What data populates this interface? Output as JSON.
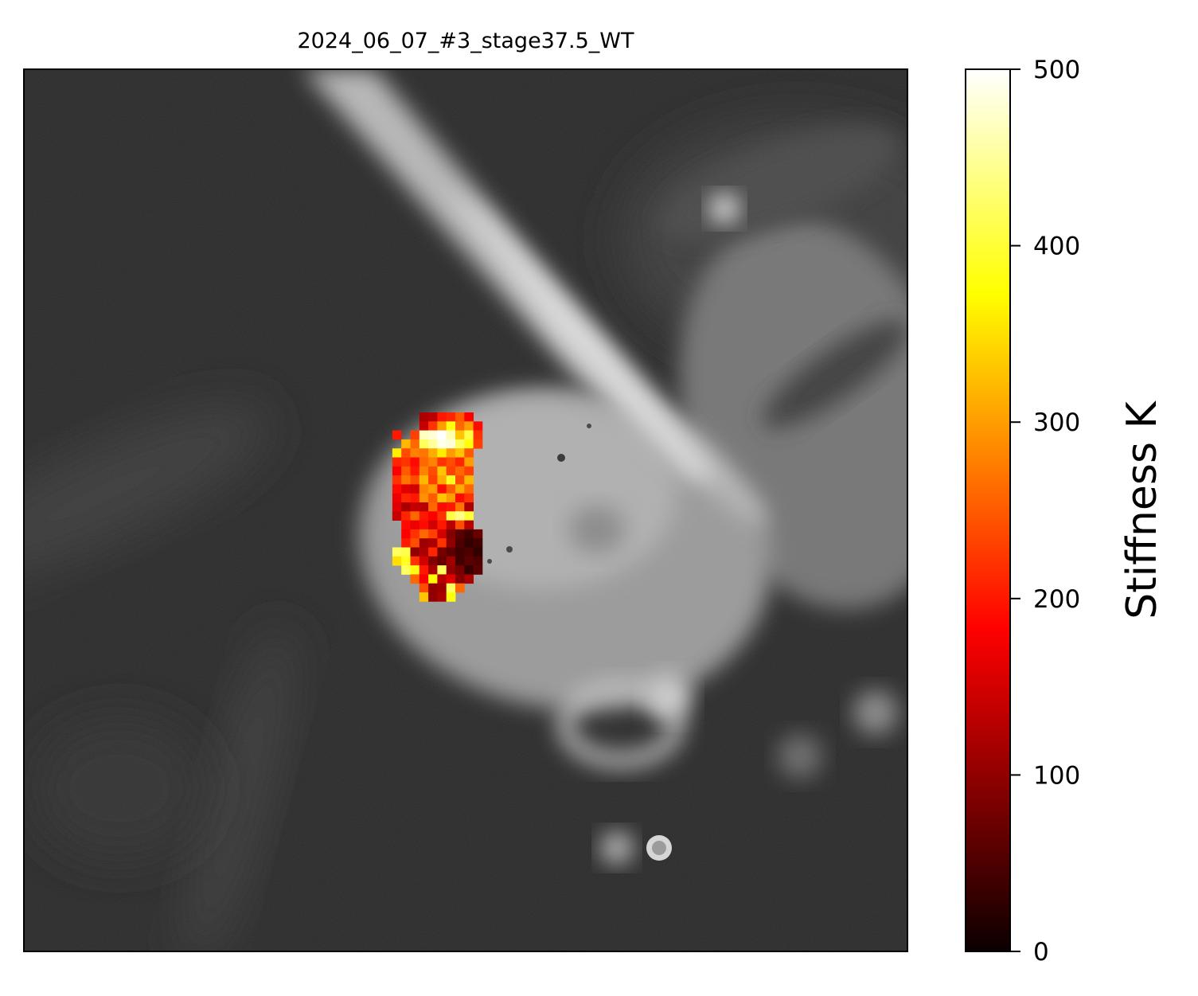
{
  "chart_data": {
    "type": "heatmap",
    "title": "2024_06_07_#3_stage37.5_WT",
    "colorbar": {
      "label": "Stiffness K",
      "colormap": "hot",
      "range": [
        0,
        500
      ],
      "ticks": [
        0,
        100,
        200,
        300,
        400,
        500
      ],
      "tick_labels": [
        "0",
        "100",
        "200",
        "300",
        "400",
        "500"
      ]
    },
    "background": "grayscale microscope image",
    "grid": false,
    "axes_ticks_visible": false,
    "stiffness_grid": [
      [
        null,
        null,
        null,
        null,
        null,
        null,
        120,
        130,
        200,
        210,
        250,
        180,
        null,
        null
      ],
      [
        null,
        null,
        null,
        null,
        null,
        null,
        140,
        220,
        300,
        380,
        260,
        300,
        190,
        null
      ],
      [
        null,
        null,
        null,
        200,
        null,
        230,
        470,
        480,
        500,
        460,
        330,
        410,
        220,
        null
      ],
      [
        null,
        null,
        null,
        null,
        320,
        260,
        420,
        450,
        490,
        480,
        420,
        380,
        230,
        null
      ],
      [
        null,
        null,
        null,
        360,
        240,
        280,
        270,
        310,
        360,
        300,
        330,
        250,
        null,
        null
      ],
      [
        null,
        null,
        null,
        210,
        220,
        190,
        260,
        280,
        220,
        240,
        210,
        300,
        null,
        null
      ],
      [
        null,
        null,
        null,
        180,
        250,
        200,
        280,
        240,
        330,
        230,
        260,
        230,
        null,
        null
      ],
      [
        null,
        null,
        null,
        220,
        270,
        240,
        320,
        230,
        310,
        390,
        240,
        320,
        null,
        null
      ],
      [
        null,
        null,
        null,
        190,
        160,
        150,
        280,
        300,
        190,
        250,
        310,
        260,
        null,
        null
      ],
      [
        null,
        null,
        null,
        170,
        210,
        200,
        290,
        250,
        330,
        300,
        190,
        220,
        null,
        null
      ],
      [
        null,
        null,
        null,
        160,
        120,
        140,
        130,
        260,
        190,
        200,
        270,
        120,
        null,
        null
      ],
      [
        null,
        null,
        null,
        140,
        210,
        260,
        200,
        180,
        220,
        410,
        440,
        400,
        null,
        null
      ],
      [
        null,
        null,
        null,
        null,
        190,
        170,
        190,
        150,
        200,
        130,
        240,
        130,
        null,
        null
      ],
      [
        null,
        null,
        null,
        null,
        180,
        220,
        260,
        230,
        150,
        90,
        60,
        40,
        70,
        null
      ],
      [
        null,
        null,
        null,
        null,
        200,
        240,
        110,
        120,
        220,
        100,
        50,
        30,
        40,
        null
      ],
      [
        null,
        null,
        null,
        420,
        410,
        100,
        120,
        210,
        80,
        60,
        40,
        50,
        30,
        null
      ],
      [
        null,
        null,
        null,
        350,
        390,
        220,
        150,
        90,
        70,
        110,
        40,
        60,
        50,
        null
      ],
      [
        null,
        null,
        null,
        null,
        420,
        380,
        200,
        120,
        420,
        100,
        80,
        30,
        60,
        null
      ],
      [
        null,
        null,
        null,
        null,
        null,
        260,
        180,
        370,
        130,
        160,
        90,
        120,
        null,
        null
      ],
      [
        null,
        null,
        null,
        null,
        null,
        null,
        240,
        100,
        110,
        420,
        260,
        null,
        null,
        null
      ],
      [
        null,
        null,
        null,
        null,
        null,
        null,
        330,
        100,
        120,
        380,
        null,
        null,
        null,
        null
      ]
    ]
  }
}
